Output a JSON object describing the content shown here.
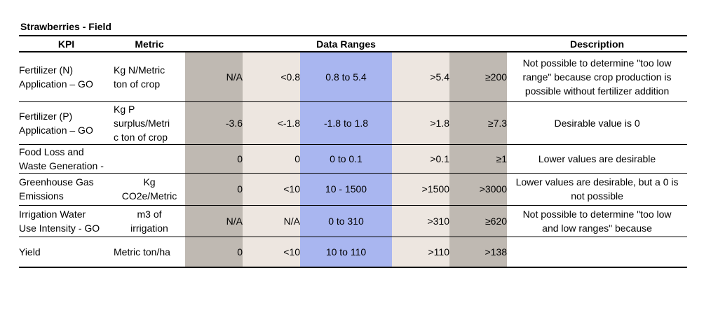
{
  "title": "Strawberries - Field",
  "headers": {
    "kpi": "KPI",
    "metric": "Metric",
    "ranges": "Data Ranges",
    "description": "Description"
  },
  "colors": {
    "range_outer": "#bfb9b2",
    "range_inner": "#ede6e0",
    "range_target": "#a9b6f0"
  },
  "rows": [
    {
      "kpi": [
        "Fertilizer (N)",
        "Application – GO"
      ],
      "metric": [
        "Kg N/Metric",
        "ton of crop"
      ],
      "ranges": [
        "N/A",
        "<0.8",
        "0.8 to 5.4",
        ">5.4",
        "≥200"
      ],
      "description": [
        "Not possible to determine \"too low",
        "range\" because crop production is",
        "possible without fertilizer addition"
      ]
    },
    {
      "kpi": [
        "Fertilizer (P)",
        "Application – GO"
      ],
      "metric": [
        "Kg P",
        "surplus/Metri",
        "c ton of crop"
      ],
      "ranges": [
        "-3.6",
        "<-1.8",
        "-1.8 to 1.8",
        ">1.8",
        "≥7.3"
      ],
      "description": [
        "Desirable value is 0"
      ]
    },
    {
      "kpi": [
        "Food Loss and",
        "Waste Generation -"
      ],
      "metric": [],
      "ranges": [
        "0",
        "0",
        "0 to 0.1",
        ">0.1",
        "≥1"
      ],
      "description": [
        "Lower values are desirable"
      ]
    },
    {
      "kpi": [
        "Greenhouse Gas",
        "Emissions"
      ],
      "metric": [
        "Kg",
        "CO2e/Metric"
      ],
      "ranges": [
        "0",
        "<10",
        "10 - 1500",
        ">1500",
        ">3000"
      ],
      "description": [
        "Lower values are desirable, but a 0 is",
        "not possible"
      ]
    },
    {
      "kpi": [
        "Irrigation Water",
        "Use Intensity - GO"
      ],
      "metric": [
        "m3 of",
        "irrigation"
      ],
      "ranges": [
        "N/A",
        "N/A",
        "0 to 310",
        ">310",
        "≥620"
      ],
      "description": [
        "Not possible to determine \"too low",
        "and low ranges\" because"
      ]
    },
    {
      "kpi": [
        "Yield"
      ],
      "metric": [
        "Metric ton/ha"
      ],
      "ranges": [
        "0",
        "<10",
        "10 to 110",
        ">110",
        ">138"
      ],
      "description": []
    }
  ]
}
